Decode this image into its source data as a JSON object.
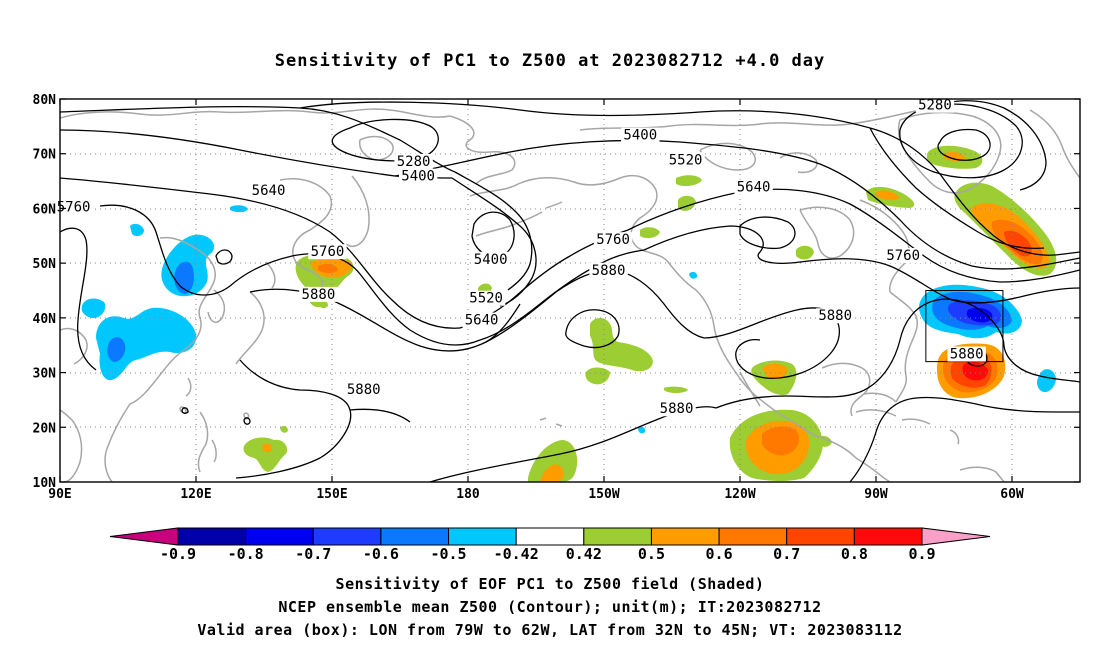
{
  "title": "Sensitivity of PC1 to Z500 at 2023082712 +4.0 day",
  "map": {
    "lat_labels": [
      "80N",
      "70N",
      "60N",
      "50N",
      "40N",
      "30N",
      "20N",
      "10N"
    ],
    "lon_labels": [
      "90E",
      "120E",
      "150E",
      "180",
      "150W",
      "120W",
      "90W",
      "60W"
    ],
    "contour_labels": [
      {
        "text": "5280",
        "lon": 168,
        "lat": 68.5
      },
      {
        "text": "5400",
        "lon": 169,
        "lat": 65.8
      },
      {
        "text": "5640",
        "lon": 136,
        "lat": 63.2
      },
      {
        "text": "5760",
        "lon": 93,
        "lat": 60.2
      },
      {
        "text": "5760",
        "lon": 149,
        "lat": 52.0
      },
      {
        "text": "5880",
        "lon": 147,
        "lat": 44.2
      },
      {
        "text": "5400",
        "lon": 185,
        "lat": 50.6
      },
      {
        "text": "5520",
        "lon": 184,
        "lat": 43.5
      },
      {
        "text": "5640",
        "lon": 183,
        "lat": 39.5
      },
      {
        "text": "5760",
        "lon": 212,
        "lat": 54.2
      },
      {
        "text": "5880",
        "lon": 211,
        "lat": 48.6
      },
      {
        "text": "5400",
        "lon": 218,
        "lat": 73.3
      },
      {
        "text": "5520",
        "lon": 228,
        "lat": 68.8
      },
      {
        "text": "5640",
        "lon": 243,
        "lat": 63.8
      },
      {
        "text": "5280",
        "lon": 283,
        "lat": 78.8
      },
      {
        "text": "5760",
        "lon": 276,
        "lat": 51.3
      },
      {
        "text": "5880",
        "lon": 261,
        "lat": 40.3
      },
      {
        "text": "5880",
        "lon": 290,
        "lat": 33.3
      },
      {
        "text": "5880",
        "lon": 157,
        "lat": 26.8
      },
      {
        "text": "5880",
        "lon": 226,
        "lat": 23.3
      }
    ],
    "valid_box": {
      "lon_west": -79,
      "lon_east": -62,
      "lat_south": 32,
      "lat_north": 45
    }
  },
  "colorbar": {
    "labels": [
      "-0.9",
      "-0.8",
      "-0.7",
      "-0.6",
      "-0.5",
      "-0.42",
      "0.42",
      "0.5",
      "0.6",
      "0.7",
      "0.8",
      "0.9"
    ],
    "colors": [
      "#0000a8",
      "#0000f0",
      "#1e3cff",
      "#0a78ff",
      "#00c8ff",
      "#ffffff",
      "#9ccd32",
      "#ff9d00",
      "#ff7800",
      "#ff4500",
      "#ff0a0a"
    ],
    "low_end_color": "#c8007d",
    "high_end_color": "#f8a0c8"
  },
  "captions": [
    "Sensitivity of EOF PC1 to Z500 field (Shaded)",
    "NCEP ensemble mean Z500 (Contour); unit(m); IT:2023082712",
    "Valid area (box): LON from 79W to 62W, LAT from 32N to 45N; VT: 2023083112"
  ],
  "colors": {
    "land_outline": "#a6a6a6",
    "contour": "#000000",
    "grid": "#888888"
  }
}
